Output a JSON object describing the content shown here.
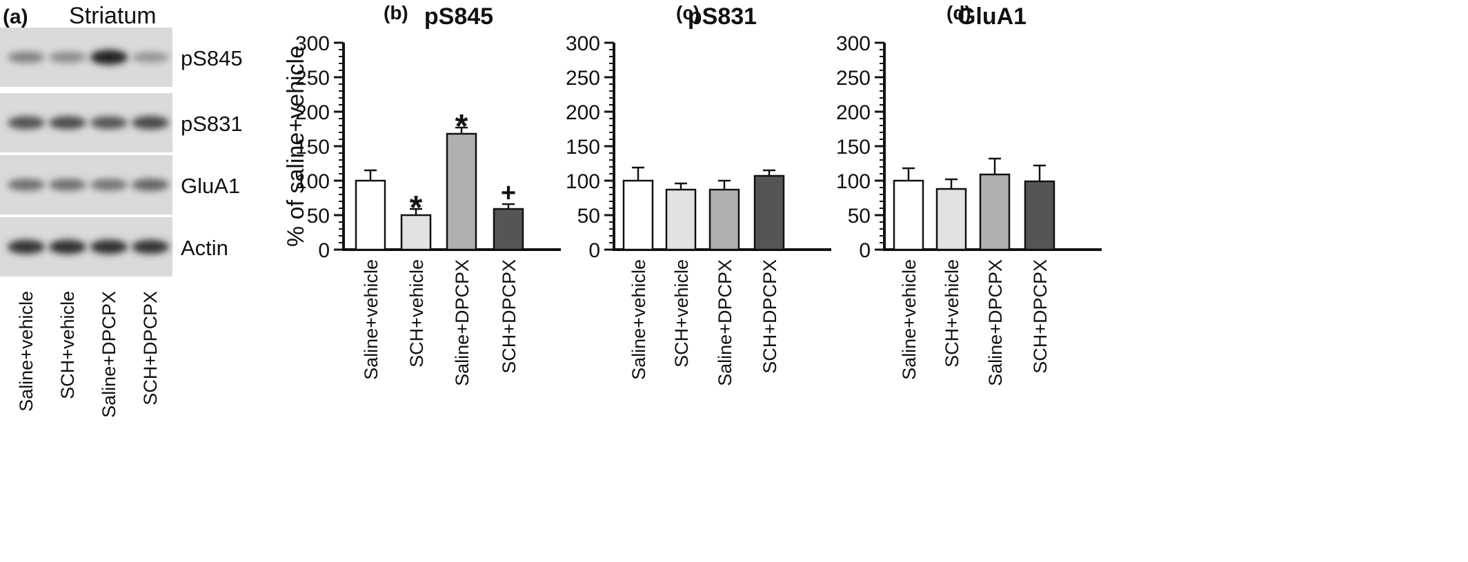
{
  "panel_a": {
    "label": "(a)",
    "region": "Striatum",
    "blots": [
      "pS845",
      "pS831",
      "GluA1",
      "Actin"
    ],
    "lanes": [
      "Saline+vehicle",
      "SCH+vehicle",
      "Saline+DPCPX",
      "SCH+DPCPX"
    ],
    "band_intensity": [
      [
        0.45,
        0.4,
        0.95,
        0.35
      ],
      [
        0.7,
        0.72,
        0.68,
        0.74
      ],
      [
        0.55,
        0.55,
        0.52,
        0.6
      ],
      [
        0.85,
        0.88,
        0.88,
        0.85
      ]
    ]
  },
  "chart_data": [
    {
      "type": "bar",
      "panel_label": "(b)",
      "title": "pS845",
      "ylabel": "% of saline+vehicle",
      "xlabel": "",
      "categories": [
        "Saline+vehicle",
        "SCH+vehicle",
        "Saline+DPCPX",
        "SCH+DPCPX"
      ],
      "values": [
        100,
        50,
        168,
        59
      ],
      "errors": [
        15,
        9,
        9,
        7
      ],
      "annotations": [
        "",
        "*",
        "*",
        "+"
      ],
      "ylim": [
        0,
        300
      ],
      "yticks": [
        0,
        50,
        100,
        150,
        200,
        250,
        300
      ],
      "colors": [
        "#ffffff",
        "#e2e2e2",
        "#b0b0b0",
        "#555555"
      ],
      "show_ylabel": true
    },
    {
      "type": "bar",
      "panel_label": "(c)",
      "title": "pS831",
      "ylabel": "",
      "xlabel": "",
      "categories": [
        "Saline+vehicle",
        "SCH+vehicle",
        "Saline+DPCPX",
        "SCH+DPCPX"
      ],
      "values": [
        100,
        87,
        87,
        107
      ],
      "errors": [
        19,
        9,
        13,
        8
      ],
      "annotations": [
        "",
        "",
        "",
        ""
      ],
      "ylim": [
        0,
        300
      ],
      "yticks": [
        0,
        50,
        100,
        150,
        200,
        250,
        300
      ],
      "colors": [
        "#ffffff",
        "#e2e2e2",
        "#b0b0b0",
        "#555555"
      ],
      "show_ylabel": false
    },
    {
      "type": "bar",
      "panel_label": "(d)",
      "title": "GluA1",
      "ylabel": "",
      "xlabel": "",
      "categories": [
        "Saline+vehicle",
        "SCH+vehicle",
        "Saline+DPCPX",
        "SCH+DPCPX"
      ],
      "values": [
        100,
        88,
        109,
        99
      ],
      "errors": [
        18,
        14,
        23,
        23
      ],
      "annotations": [
        "",
        "",
        "",
        ""
      ],
      "ylim": [
        0,
        300
      ],
      "yticks": [
        0,
        50,
        100,
        150,
        200,
        250,
        300
      ],
      "colors": [
        "#ffffff",
        "#e2e2e2",
        "#b0b0b0",
        "#555555"
      ],
      "show_ylabel": false
    }
  ]
}
